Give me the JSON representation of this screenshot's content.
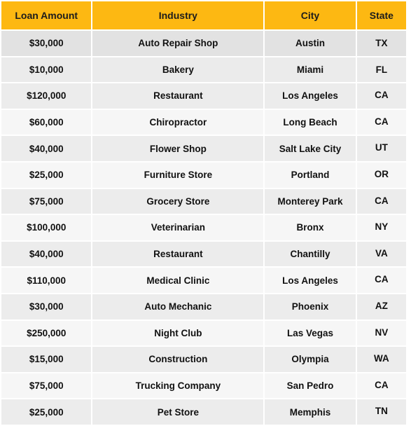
{
  "table": {
    "headers": {
      "loan_amount": "Loan Amount",
      "industry": "Industry",
      "city": "City",
      "state": "State"
    },
    "rows": [
      {
        "loan_amount": "$30,000",
        "industry": "Auto Repair Shop",
        "city": "Austin",
        "state": "TX"
      },
      {
        "loan_amount": "$10,000",
        "industry": "Bakery",
        "city": "Miami",
        "state": "FL"
      },
      {
        "loan_amount": "$120,000",
        "industry": "Restaurant",
        "city": "Los Angeles",
        "state": "CA"
      },
      {
        "loan_amount": "$60,000",
        "industry": "Chiropractor",
        "city": "Long Beach",
        "state": "CA"
      },
      {
        "loan_amount": "$40,000",
        "industry": "Flower Shop",
        "city": "Salt Lake City",
        "state": "UT"
      },
      {
        "loan_amount": "$25,000",
        "industry": "Furniture Store",
        "city": "Portland",
        "state": "OR"
      },
      {
        "loan_amount": "$75,000",
        "industry": "Grocery Store",
        "city": "Monterey Park",
        "state": "CA"
      },
      {
        "loan_amount": "$100,000",
        "industry": "Veterinarian",
        "city": "Bronx",
        "state": "NY"
      },
      {
        "loan_amount": "$40,000",
        "industry": "Restaurant",
        "city": "Chantilly",
        "state": "VA"
      },
      {
        "loan_amount": "$110,000",
        "industry": "Medical Clinic",
        "city": "Los Angeles",
        "state": "CA"
      },
      {
        "loan_amount": "$30,000",
        "industry": "Auto Mechanic",
        "city": "Phoenix",
        "state": "AZ"
      },
      {
        "loan_amount": "$250,000",
        "industry": "Night Club",
        "city": "Las Vegas",
        "state": "NV"
      },
      {
        "loan_amount": "$15,000",
        "industry": "Construction",
        "city": "Olympia",
        "state": "WA"
      },
      {
        "loan_amount": "$75,000",
        "industry": "Trucking Company",
        "city": "San Pedro",
        "state": "CA"
      },
      {
        "loan_amount": "$25,000",
        "industry": "Pet Store",
        "city": "Memphis",
        "state": "TN"
      }
    ]
  },
  "colors": {
    "header_background": "#fdb812",
    "row_background_light": "#f6f6f6",
    "row_background_dark": "#ececec"
  }
}
